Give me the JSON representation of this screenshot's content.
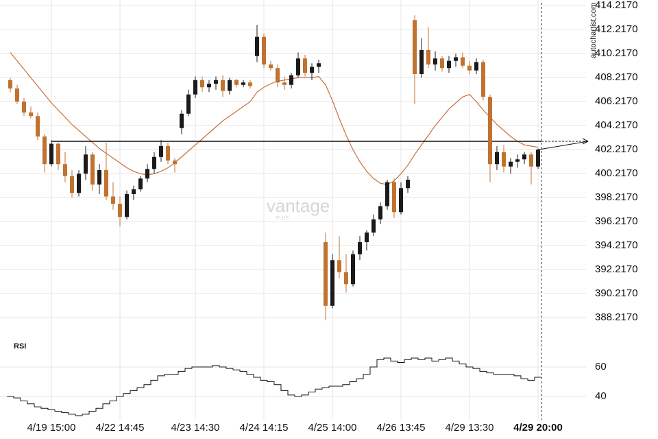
{
  "chart_data": [
    {
      "type": "candlestick",
      "categories": [
        null,
        null,
        null,
        null,
        null,
        null,
        "4/19 15:00",
        null,
        null,
        null,
        null,
        null,
        null,
        null,
        null,
        null,
        "4/22 14:45",
        null,
        null,
        null,
        null,
        null,
        null,
        null,
        null,
        null,
        null,
        "4/23 14:30",
        null,
        null,
        null,
        null,
        null,
        null,
        null,
        null,
        null,
        "4/24 14:15",
        null,
        null,
        null,
        null,
        null,
        null,
        null,
        null,
        null,
        "4/25 14:00",
        null,
        null,
        null,
        null,
        null,
        null,
        null,
        null,
        null,
        "4/26 13:45",
        null,
        null,
        null,
        null,
        null,
        null,
        null,
        null,
        null,
        "4/29 13:30",
        null,
        null,
        null,
        null,
        null,
        null,
        null,
        null,
        null,
        "4/29 20:00"
      ],
      "open": [
        408,
        407.3,
        406.2,
        405.3,
        405,
        403.3,
        401,
        402.7,
        401,
        400,
        398.6,
        400.2,
        401.8,
        399.3,
        400.5,
        398.3,
        397.7,
        396.6,
        398.5,
        398.9,
        399.8,
        400.6,
        401.6,
        402.5,
        401.3,
        404,
        405.2,
        406.8,
        408,
        407.4,
        407.7,
        408,
        407.1,
        408,
        407.6,
        407.8,
        410,
        411.6,
        409.3,
        409,
        407.8,
        407.6,
        408.4,
        409.8,
        408.6,
        409.1,
        394.5,
        389.2,
        393,
        392,
        391,
        393.5,
        394.5,
        395.3,
        396.4,
        397.5,
        399.5,
        397,
        399,
        413,
        408.5,
        410.5,
        409.3,
        409.8,
        409,
        409.6,
        409.9,
        409.2,
        408.8,
        409.5,
        406.6,
        401,
        402,
        400.8,
        401.2,
        401.4,
        401.8,
        400.8
      ],
      "high": [
        408.2,
        407.6,
        406.5,
        405.8,
        405.3,
        403.5,
        403,
        402.8,
        402,
        400.5,
        400.5,
        402.5,
        402,
        401,
        402.8,
        399.5,
        398.3,
        398.8,
        399.2,
        400,
        401,
        402,
        403,
        402.8,
        401.5,
        405.5,
        407.2,
        408.3,
        408.3,
        408,
        408.3,
        408.4,
        408.2,
        408.1,
        408,
        408,
        412.6,
        411.9,
        409.6,
        409.3,
        408.3,
        408.6,
        410.3,
        410.1,
        409.4,
        409.7,
        395.3,
        393.5,
        395,
        393.5,
        393.8,
        395,
        395.5,
        396.8,
        397.8,
        399.7,
        399.8,
        399.5,
        400,
        413.4,
        411.5,
        412.4,
        410.4,
        410,
        410,
        410.2,
        410.3,
        409.6,
        409.8,
        409.7,
        406.8,
        402.5,
        402.6,
        401.5,
        401.8,
        402,
        402,
        402.3
      ],
      "low": [
        407,
        406,
        405,
        404.8,
        403,
        400.3,
        400.8,
        400.5,
        399.5,
        398.2,
        398.3,
        399.7,
        398.8,
        398.5,
        398,
        397.2,
        395.8,
        396.4,
        398,
        398.7,
        399.5,
        400.2,
        401.2,
        401,
        400.3,
        403.5,
        405,
        406.5,
        407,
        407,
        407.2,
        406.6,
        406.8,
        407.4,
        407.4,
        407.3,
        409.5,
        409,
        408.8,
        407.4,
        407.2,
        407.3,
        408.2,
        408.3,
        408,
        408.6,
        388,
        389,
        391.5,
        390.3,
        390.8,
        393,
        393.8,
        395,
        396,
        397.2,
        396.5,
        396.8,
        398.6,
        406,
        408.2,
        409,
        408.8,
        408.7,
        408.6,
        409.1,
        409,
        408.5,
        408.5,
        406.3,
        399.5,
        400.5,
        400.3,
        400.2,
        400.7,
        401,
        399.3,
        400.6
      ],
      "close": [
        407.3,
        406.2,
        405.3,
        405,
        403.3,
        401,
        402.7,
        401,
        400,
        398.6,
        400.2,
        401.8,
        399.3,
        400.5,
        398.3,
        397.7,
        396.6,
        398.5,
        398.9,
        399.8,
        400.6,
        401.6,
        402.5,
        401.3,
        401,
        405.2,
        406.8,
        408,
        407.4,
        407.7,
        408,
        407.1,
        408,
        407.6,
        407.8,
        407.5,
        411.6,
        409.3,
        409,
        407.8,
        407.6,
        408.4,
        409.8,
        408.6,
        409.1,
        409.4,
        389.2,
        393,
        392,
        391,
        393.5,
        394.5,
        395.3,
        396.4,
        397.5,
        399.5,
        397,
        399,
        399.7,
        408.5,
        410.5,
        409.3,
        409.8,
        409,
        409.6,
        409.9,
        409.2,
        408.8,
        409.5,
        406.6,
        401,
        402,
        400.8,
        401.2,
        401.4,
        401.8,
        400.8,
        402.2
      ],
      "up_color": "#1a1a1a",
      "down_color": "#c0722f",
      "ma": [
        410.3,
        409.6,
        408.9,
        408.2,
        407.5,
        406.8,
        406.1,
        405.5,
        404.9,
        404.3,
        403.8,
        403.3,
        402.8,
        402.3,
        401.9,
        401.5,
        401.1,
        400.7,
        400.4,
        400.2,
        400.1,
        400.2,
        400.4,
        400.7,
        401.1,
        401.6,
        402.1,
        402.6,
        403.1,
        403.6,
        404.1,
        404.6,
        405,
        405.4,
        405.8,
        406.2,
        407,
        407.4,
        407.7,
        407.9,
        408,
        408.1,
        408.2,
        408.2,
        408.2,
        408.3,
        407.6,
        406.3,
        404.8,
        403.4,
        402.2,
        401.2,
        400.4,
        399.8,
        399.4,
        399.3,
        399.6,
        400.2,
        400.9,
        401.8,
        402.6,
        403.4,
        404.2,
        404.9,
        405.6,
        406.1,
        406.6,
        406.8,
        406.2,
        405.5,
        404.9,
        404.3,
        403.8,
        403.3,
        402.9,
        402.6,
        402.5,
        402.4
      ],
      "ma_color": "#c8703a",
      "level": 402.9,
      "ylim": [
        386.96,
        414.67
      ],
      "yticks": [
        {
          "value": 388.217,
          "label": "388.2170"
        },
        {
          "value": 390.217,
          "label": "390.2170"
        },
        {
          "value": 392.217,
          "label": "392.2170"
        },
        {
          "value": 394.217,
          "label": "394.2170"
        },
        {
          "value": 396.217,
          "label": "396.2170"
        },
        {
          "value": 398.217,
          "label": "398.2170"
        },
        {
          "value": 400.217,
          "label": "400.2170"
        },
        {
          "value": 402.217,
          "label": "402.2170"
        },
        {
          "value": 404.217,
          "label": "404.2170"
        },
        {
          "value": 406.217,
          "label": "406.2170"
        },
        {
          "value": 408.217,
          "label": "408.2170"
        },
        {
          "value": 410.217,
          "label": "410.2170"
        },
        {
          "value": 412.217,
          "label": "412.2170"
        },
        {
          "value": 414.217,
          "label": "414.2170"
        }
      ],
      "grid": true,
      "watermark": "vantage",
      "watermark_sub": "PLUS",
      "source": "autochartist.com"
    },
    {
      "type": "line",
      "title": "RSI",
      "color": "#111111",
      "values": [
        40,
        39,
        37,
        35,
        33,
        32,
        31,
        30,
        29,
        28,
        27,
        28,
        30,
        32,
        35,
        37,
        40,
        42,
        44,
        46,
        48,
        51,
        54,
        55,
        55,
        57,
        59,
        60,
        60,
        60,
        61,
        60,
        59,
        58,
        57,
        55,
        53,
        51,
        50,
        48,
        44,
        41,
        40,
        41,
        43,
        45,
        46,
        47,
        47,
        48,
        50,
        52,
        55,
        60,
        65,
        66,
        64,
        63,
        65,
        66,
        65,
        66,
        64,
        65,
        66,
        64,
        62,
        60,
        59,
        57,
        56,
        55,
        55,
        55,
        54,
        52,
        51,
        53
      ],
      "ylim": [
        24.2,
        80.9
      ],
      "yticks": [
        40,
        60
      ],
      "grid": true
    }
  ]
}
